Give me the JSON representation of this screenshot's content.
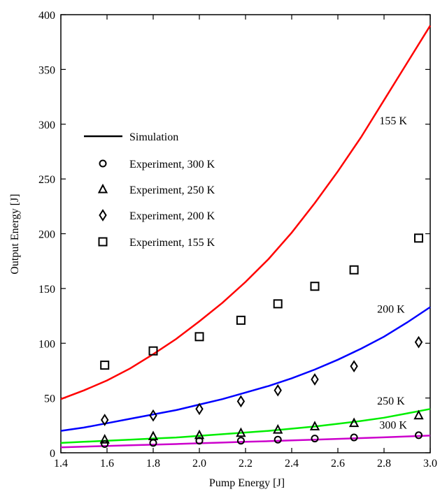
{
  "chart_data": {
    "type": "line",
    "title": "",
    "xlabel": "Pump Energy [J]",
    "ylabel": "Output Energy [J]",
    "xlim": [
      1.4,
      3.0
    ],
    "ylim": [
      0,
      400
    ],
    "xticks": [
      "1.4",
      "1.6",
      "1.8",
      "2.0",
      "2.2",
      "2.4",
      "2.6",
      "2.8",
      "3.0"
    ],
    "yticks": [
      "0",
      "50",
      "100",
      "150",
      "200",
      "250",
      "300",
      "350",
      "400"
    ],
    "grid": false,
    "legend_position": "center-left",
    "simulation": [
      {
        "label": "155 K",
        "color": "#ff0000",
        "x": [
          1.4,
          1.5,
          1.6,
          1.7,
          1.8,
          1.9,
          2.0,
          2.1,
          2.2,
          2.3,
          2.4,
          2.5,
          2.6,
          2.7,
          2.8,
          2.9,
          3.0
        ],
        "y": [
          49,
          57,
          66,
          77,
          90,
          104,
          120,
          137,
          156,
          177,
          201,
          228,
          257,
          288,
          322,
          356,
          390
        ]
      },
      {
        "label": "200 K",
        "color": "#0000ff",
        "x": [
          1.4,
          1.5,
          1.6,
          1.7,
          1.8,
          1.9,
          2.0,
          2.1,
          2.2,
          2.3,
          2.4,
          2.5,
          2.6,
          2.7,
          2.8,
          2.9,
          3.0
        ],
        "y": [
          20,
          23,
          27,
          31,
          35,
          39,
          44,
          49,
          55,
          61,
          68,
          76,
          85,
          95,
          106,
          119,
          133
        ]
      },
      {
        "label": "250 K",
        "color": "#00ee00",
        "x": [
          1.4,
          1.5,
          1.6,
          1.7,
          1.8,
          1.9,
          2.0,
          2.1,
          2.2,
          2.3,
          2.4,
          2.5,
          2.6,
          2.7,
          2.8,
          2.9,
          3.0
        ],
        "y": [
          9,
          10,
          11,
          12,
          13,
          14,
          15.5,
          17,
          18.5,
          20,
          22,
          24,
          26.5,
          29,
          32,
          36,
          40
        ]
      },
      {
        "label": "300 K",
        "color": "#cc00cc",
        "x": [
          1.4,
          1.5,
          1.6,
          1.7,
          1.8,
          1.9,
          2.0,
          2.1,
          2.2,
          2.3,
          2.4,
          2.5,
          2.6,
          2.7,
          2.8,
          2.9,
          3.0
        ],
        "y": [
          5,
          5.6,
          6.2,
          6.8,
          7.4,
          8,
          8.7,
          9.3,
          10,
          10.6,
          11.3,
          12,
          12.7,
          13.4,
          14.1,
          14.9,
          15.7
        ]
      }
    ],
    "experiments": [
      {
        "name": "Experiment, 300 K",
        "marker": "circle",
        "x": [
          1.59,
          1.8,
          2.0,
          2.18,
          2.34,
          2.5,
          2.67,
          2.95
        ],
        "y": [
          8,
          9,
          11,
          11,
          12,
          13,
          14,
          16
        ]
      },
      {
        "name": "Experiment, 250 K",
        "marker": "triangle",
        "x": [
          1.59,
          1.8,
          2.0,
          2.18,
          2.34,
          2.5,
          2.67,
          2.95
        ],
        "y": [
          12,
          15,
          16,
          18,
          21,
          24,
          27,
          34
        ]
      },
      {
        "name": "Experiment, 200 K",
        "marker": "diamond",
        "x": [
          1.59,
          1.8,
          2.0,
          2.18,
          2.34,
          2.5,
          2.67,
          2.95
        ],
        "y": [
          30,
          34,
          40,
          47,
          57,
          67,
          79,
          101
        ]
      },
      {
        "name": "Experiment, 155 K",
        "marker": "square",
        "x": [
          1.59,
          1.8,
          2.0,
          2.18,
          2.34,
          2.5,
          2.67,
          2.95
        ],
        "y": [
          80,
          93,
          106,
          121,
          136,
          152,
          167,
          196
        ]
      }
    ],
    "legend": {
      "simulation_label": "Simulation",
      "entries": [
        "Experiment, 300 K",
        "Experiment, 250 K",
        "Experiment, 200 K",
        "Experiment, 155 K"
      ]
    }
  }
}
